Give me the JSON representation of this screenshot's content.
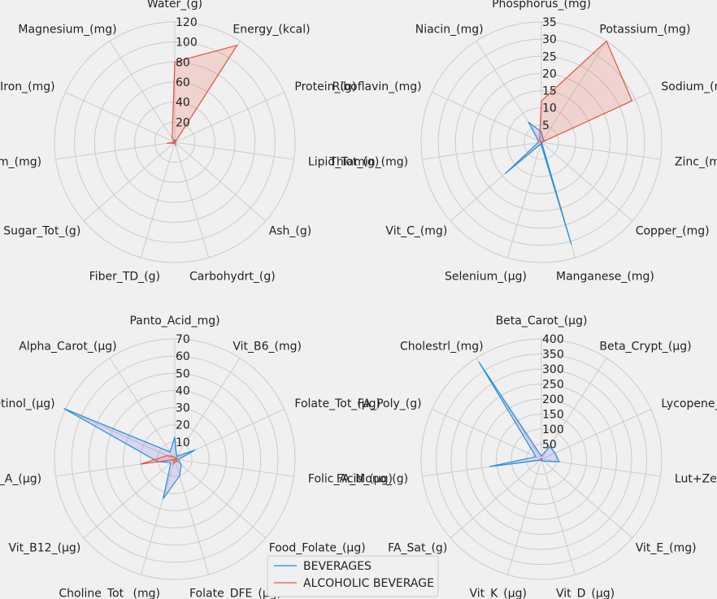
{
  "chart_data": {
    "type": "radar",
    "colors": {
      "BEVERAGES": "#1f8fdc",
      "ALCOHOLIC BEVERAGE": "#e8533f",
      "grid": "#cbcbcb",
      "background": "#f0f0f0"
    },
    "legend": {
      "placement": "bottom-center",
      "entries": [
        "BEVERAGES",
        "ALCOHOLIC BEVERAGE"
      ]
    },
    "grid": true,
    "panels": [
      {
        "axes": [
          "Water_(g)",
          "Energy_(kcal)",
          "Protein_(g)",
          "Lipid_Tot_(g)",
          "Ash_(g)",
          "Carbohydrt_(g)",
          "Fiber_TD_(g)",
          "Sugar_Tot_(g)",
          "Calcium_(mg)",
          "Iron_(mg)",
          "Magnesium_(mg)"
        ],
        "rmax": 120,
        "ticks": [
          20,
          40,
          60,
          80,
          100,
          120
        ],
        "series": [
          {
            "name": "BEVERAGES",
            "values": [
              2,
              2,
              0.5,
              0.1,
              0.5,
              2,
              0.2,
              2,
              4,
              0.3,
              3
            ]
          },
          {
            "name": "ALCOHOLIC BEVERAGE",
            "values": [
              80,
              115,
              0.5,
              0.1,
              0.5,
              4,
              0.2,
              1,
              8,
              0.3,
              5
            ]
          }
        ]
      },
      {
        "axes": [
          "Phosphorus_(mg)",
          "Potassium_(mg)",
          "Sodium_(mg)",
          "Zinc_(mg)",
          "Copper_(mg)",
          "Manganese_(mg)",
          "Selenium_(µg)",
          "Vit_C_(mg)",
          "Thiamin_(mg)",
          "Riboflavin_(mg)",
          "Niacin_(mg)"
        ],
        "rmax": 35,
        "ticks": [
          5,
          10,
          15,
          20,
          25,
          30,
          35
        ],
        "series": [
          {
            "name": "BEVERAGES",
            "values": [
              3,
              1,
              1,
              0.1,
              0.1,
              31,
              0.5,
              14,
              1,
              1,
              7
            ]
          },
          {
            "name": "ALCOHOLIC BEVERAGE",
            "values": [
              12,
              35,
              29,
              0.1,
              0.1,
              0.1,
              0.5,
              0.1,
              0.1,
              0.5,
              1
            ]
          }
        ]
      },
      {
        "axes": [
          "Panto_Acid_mg)",
          "Vit_B6_(mg)",
          "Folate_Tot_(µg)",
          "Folic_Acid_(µg)",
          "Food_Folate_(µg)",
          "Folate_DFE_(µg)",
          "Choline_Tot_ (mg)",
          "Vit_B12_(µg)",
          "Vit_A_(µg)",
          "Retinol_(µg)",
          "Alpha_Carot_(µg)"
        ],
        "rmax": 70,
        "ticks": [
          10,
          20,
          30,
          40,
          50,
          60,
          70
        ],
        "series": [
          {
            "name": "BEVERAGES",
            "values": [
              13,
              2,
              13,
              2,
              5,
              10,
              24,
              3,
              10,
              71,
              5
            ]
          },
          {
            "name": "ALCOHOLIC BEVERAGE",
            "values": [
              1,
              0.5,
              2,
              0.5,
              2,
              1.5,
              3,
              0.5,
              20,
              5,
              2
            ]
          }
        ]
      },
      {
        "axes": [
          "Beta_Carot_(µg)",
          "Beta_Crypt_(µg)",
          "Lycopene_(µg)",
          "Lut+Zea_ (µg)",
          "Vit_E_(mg)",
          "Vit_D_(µg)",
          "Vit_K_(µg)",
          "FA_Sat_(g)",
          "FA_Mono_(g)",
          "FA_Poly_(g)",
          "Cholestrl_(mg)"
        ],
        "rmax": 400,
        "ticks": [
          50,
          100,
          150,
          200,
          250,
          300,
          350,
          400
        ],
        "series": [
          {
            "name": "BEVERAGES",
            "values": [
              10,
              50,
              50,
              60,
              10,
              5,
              2,
              5,
              175,
              20,
              385
            ]
          },
          {
            "name": "ALCOHOLIC BEVERAGE",
            "values": [
              1,
              1,
              1,
              1,
              1,
              1,
              1,
              1,
              1,
              1,
              1
            ]
          }
        ]
      }
    ]
  }
}
